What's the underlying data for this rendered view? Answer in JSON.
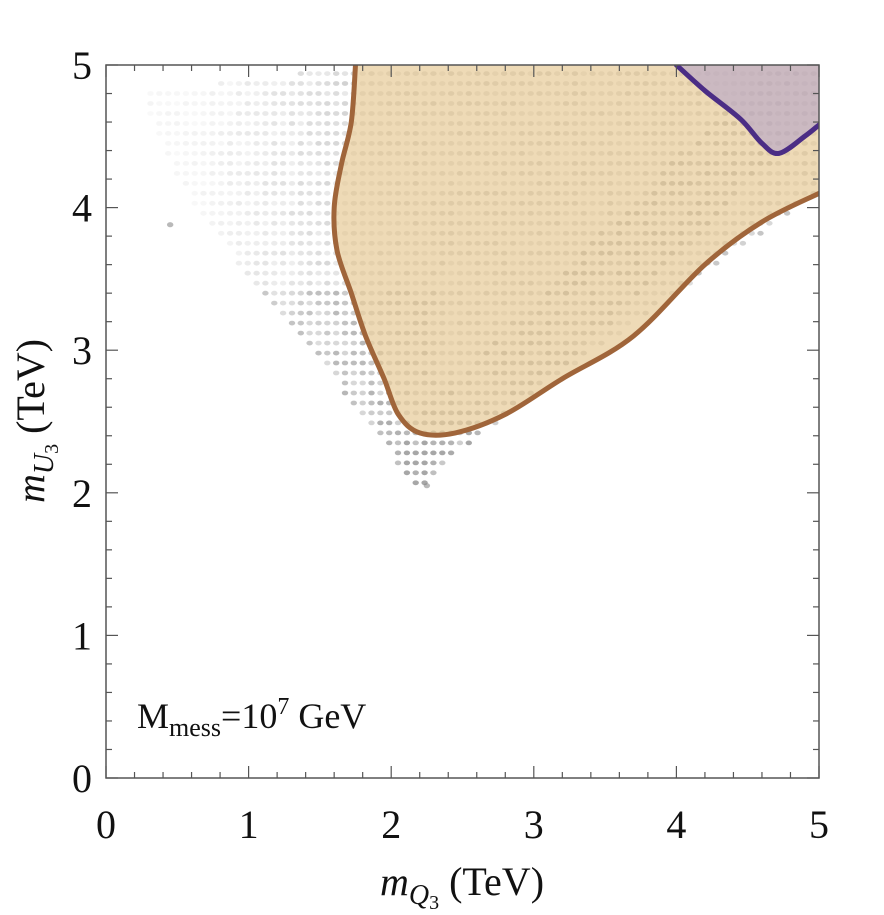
{
  "chart_data": {
    "type": "scatter",
    "title": "",
    "xlabel": {
      "var": "m",
      "sub": "Q",
      "subsub": "3",
      "unit": " (TeV)"
    },
    "ylabel": {
      "var": "m",
      "sub": "U",
      "subsub": "3",
      "unit": " (TeV)"
    },
    "xlim": [
      0,
      5
    ],
    "ylim": [
      0,
      5
    ],
    "x_ticks": [
      "0",
      "1",
      "2",
      "3",
      "4",
      "5"
    ],
    "y_ticks": [
      "0",
      "1",
      "2",
      "3",
      "4",
      "5"
    ],
    "annotation": {
      "main": "M",
      "sub": "mess",
      "rest1": "=10",
      "sup": "7",
      "rest2": " GeV"
    },
    "scatter_region": {
      "description": "grey scan points",
      "boundary": [
        [
          0.25,
          4.8
        ],
        [
          1.8,
          5.0
        ],
        [
          5.0,
          5.0
        ],
        [
          5.0,
          4.1
        ],
        [
          3.0,
          2.7
        ],
        [
          2.5,
          2.3
        ],
        [
          2.2,
          2.0
        ],
        [
          1.6,
          2.8
        ],
        [
          1.0,
          3.5
        ],
        [
          0.5,
          4.2
        ]
      ],
      "color": "#8a8a8a"
    },
    "series": [
      {
        "name": "allowed region (brown)",
        "fill": "#e8cc9a",
        "stroke": "#a0653a",
        "points": [
          [
            1.75,
            5.0
          ],
          [
            1.72,
            4.6
          ],
          [
            1.65,
            4.3
          ],
          [
            1.6,
            4.0
          ],
          [
            1.62,
            3.7
          ],
          [
            1.72,
            3.4
          ],
          [
            1.82,
            3.1
          ],
          [
            1.95,
            2.8
          ],
          [
            2.05,
            2.55
          ],
          [
            2.2,
            2.42
          ],
          [
            2.45,
            2.42
          ],
          [
            2.8,
            2.55
          ],
          [
            3.2,
            2.8
          ],
          [
            3.7,
            3.1
          ],
          [
            4.2,
            3.6
          ],
          [
            4.6,
            3.9
          ],
          [
            5.0,
            4.1
          ],
          [
            5.0,
            5.0
          ]
        ]
      },
      {
        "name": "upper-right region (purple)",
        "fill": "#b8a8c8",
        "stroke": "#4b2d85",
        "points": [
          [
            4.0,
            5.0
          ],
          [
            4.2,
            4.82
          ],
          [
            4.45,
            4.62
          ],
          [
            4.6,
            4.45
          ],
          [
            4.72,
            4.38
          ],
          [
            4.9,
            4.5
          ],
          [
            5.0,
            4.58
          ],
          [
            5.0,
            5.0
          ]
        ]
      }
    ]
  }
}
